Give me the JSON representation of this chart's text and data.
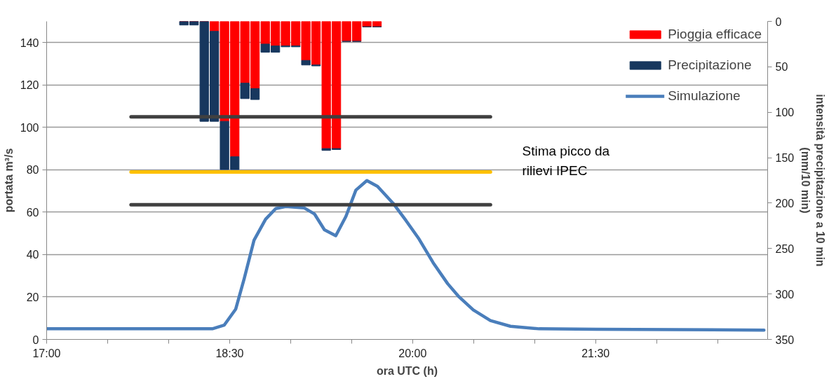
{
  "chart_data": {
    "type": "line",
    "xlabel": "ora UTC (h)",
    "ylabel": "portata m³/s",
    "y2label": "intensità precipitazione a 10 min\n(mm/10 min)",
    "xlim": [
      17,
      22.91
    ],
    "xticks": [
      {
        "value": 17,
        "label": "17:00"
      },
      {
        "value": 17.5,
        "label": null
      },
      {
        "value": 18,
        "label": null
      },
      {
        "value": 18.5,
        "label": "18:30"
      },
      {
        "value": 19,
        "label": null
      },
      {
        "value": 19.5,
        "label": null
      },
      {
        "value": 20,
        "label": "20:00"
      },
      {
        "value": 20.5,
        "label": null
      },
      {
        "value": 21,
        "label": null
      },
      {
        "value": 21.5,
        "label": "21:30"
      },
      {
        "value": 22,
        "label": null
      },
      {
        "value": 22.5,
        "label": null
      }
    ],
    "ylim": [
      0,
      150
    ],
    "yticks": [
      0,
      20,
      40,
      60,
      80,
      100,
      120,
      140
    ],
    "y2lim": [
      350,
      0
    ],
    "y2ticks": [
      0,
      50,
      100,
      150,
      200,
      250,
      300,
      350
    ],
    "grid": "y",
    "legend": "top right",
    "stacked": true,
    "annotations": [
      "Stima picco da rilievi IPEC"
    ],
    "series": [
      {
        "name": "Pioggia efficace",
        "type": "bar",
        "axis": "y2",
        "color": "#ff0000",
        "x": [
          18.125,
          18.208,
          18.292,
          18.375,
          18.458,
          18.542,
          18.625,
          18.708,
          18.792,
          18.875,
          18.958,
          19.042,
          19.125,
          19.208,
          19.292,
          19.375,
          19.458,
          19.542,
          19.625,
          19.708
        ],
        "values": [
          0,
          0,
          0,
          11,
          110,
          149,
          68,
          74,
          25,
          27,
          27,
          27,
          43,
          48,
          140,
          140,
          22,
          22,
          6,
          6
        ]
      },
      {
        "name": "Precipitazione",
        "type": "bar",
        "axis": "y2",
        "color": "#17375e",
        "x": [
          18.125,
          18.208,
          18.292,
          18.375,
          18.458,
          18.542,
          18.625,
          18.708,
          18.792,
          18.875,
          18.958,
          19.042,
          19.125,
          19.208,
          19.292,
          19.375,
          19.458,
          19.542,
          19.625,
          19.708
        ],
        "values": [
          4,
          4,
          110,
          99,
          53,
          14,
          17,
          12,
          9,
          7,
          1,
          1,
          5,
          1,
          2,
          1,
          0,
          0,
          0,
          0
        ]
      },
      {
        "name": "Simulazione",
        "color": "#4a7ebb",
        "x": [
          17.0,
          18.358,
          18.455,
          18.55,
          18.62,
          18.7,
          18.795,
          18.878,
          18.96,
          19.112,
          19.195,
          19.277,
          19.37,
          19.453,
          19.535,
          19.625,
          19.712,
          19.84,
          19.945,
          20.052,
          20.168,
          20.287,
          20.38,
          20.497,
          20.638,
          20.802,
          21.037,
          21.507,
          22.88
        ],
        "values": [
          5,
          5,
          6.7,
          14.3,
          28.8,
          46.8,
          56.7,
          61.7,
          62.7,
          62,
          59.2,
          51.7,
          48.9,
          58,
          70.4,
          74.9,
          72.2,
          64.2,
          56.1,
          47.4,
          36.2,
          26.3,
          20.1,
          13.9,
          8.9,
          6.2,
          5,
          4.8,
          4.4
        ]
      },
      {
        "color": "#404040",
        "x": [
          17.692,
          20.638
        ],
        "values": [
          105,
          105
        ]
      },
      {
        "color": "#ffc000",
        "x": [
          17.692,
          20.638
        ],
        "values": [
          79,
          79
        ]
      },
      {
        "color": "#404040",
        "x": [
          17.692,
          20.638
        ],
        "values": [
          63.5,
          63.5
        ]
      }
    ]
  }
}
